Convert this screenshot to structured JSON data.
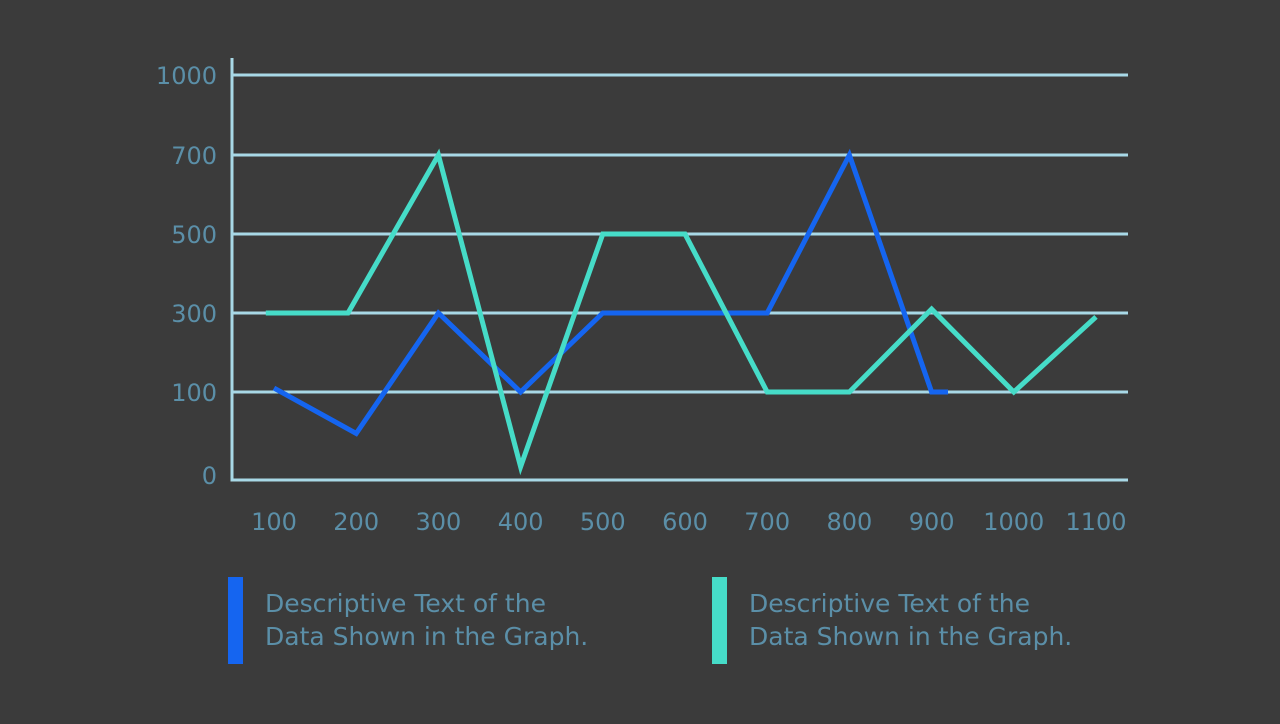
{
  "chart_data": {
    "type": "line",
    "x": [
      100,
      200,
      300,
      400,
      500,
      600,
      700,
      800,
      900,
      1000,
      1100
    ],
    "x_tick_labels": [
      "100",
      "200",
      "300",
      "400",
      "500",
      "600",
      "700",
      "800",
      "900",
      "1000",
      "1100"
    ],
    "y_tick_labels": [
      "0",
      "100",
      "300",
      "500",
      "700",
      "1000"
    ],
    "y_tick_values": [
      0,
      100,
      300,
      500,
      700,
      1000
    ],
    "y_scale": "categorical (ticks evenly spaced)",
    "grid": true,
    "legend_position": "bottom",
    "series": [
      {
        "name": "Descriptive Text of the Data Shown in the Graph.",
        "color": "#1565f0",
        "points": [
          [
            100,
            110
          ],
          [
            200,
            50
          ],
          [
            300,
            300
          ],
          [
            400,
            100
          ],
          [
            500,
            300
          ],
          [
            600,
            300
          ],
          [
            700,
            300
          ],
          [
            800,
            700
          ],
          [
            900,
            100
          ],
          [
            920,
            100
          ]
        ]
      },
      {
        "name": "Descriptive Text of the Data Shown in the Graph.",
        "color": "#46dcc8",
        "points": [
          [
            90,
            300
          ],
          [
            190,
            300
          ],
          [
            300,
            700
          ],
          [
            400,
            10
          ],
          [
            500,
            500
          ],
          [
            600,
            500
          ],
          [
            700,
            100
          ],
          [
            800,
            100
          ],
          [
            900,
            310
          ],
          [
            1000,
            100
          ],
          [
            1100,
            290
          ]
        ]
      }
    ]
  },
  "legend": [
    {
      "line1": "Descriptive Text of the",
      "line2": "Data Shown in the Graph.",
      "color": "#1565f0"
    },
    {
      "line1": "Descriptive Text of the",
      "line2": "Data Shown in the Graph.",
      "color": "#46dcc8"
    }
  ],
  "colors": {
    "background": "#3b3b3b",
    "axis": "#a8d8e6",
    "label": "#5b8fa8"
  }
}
